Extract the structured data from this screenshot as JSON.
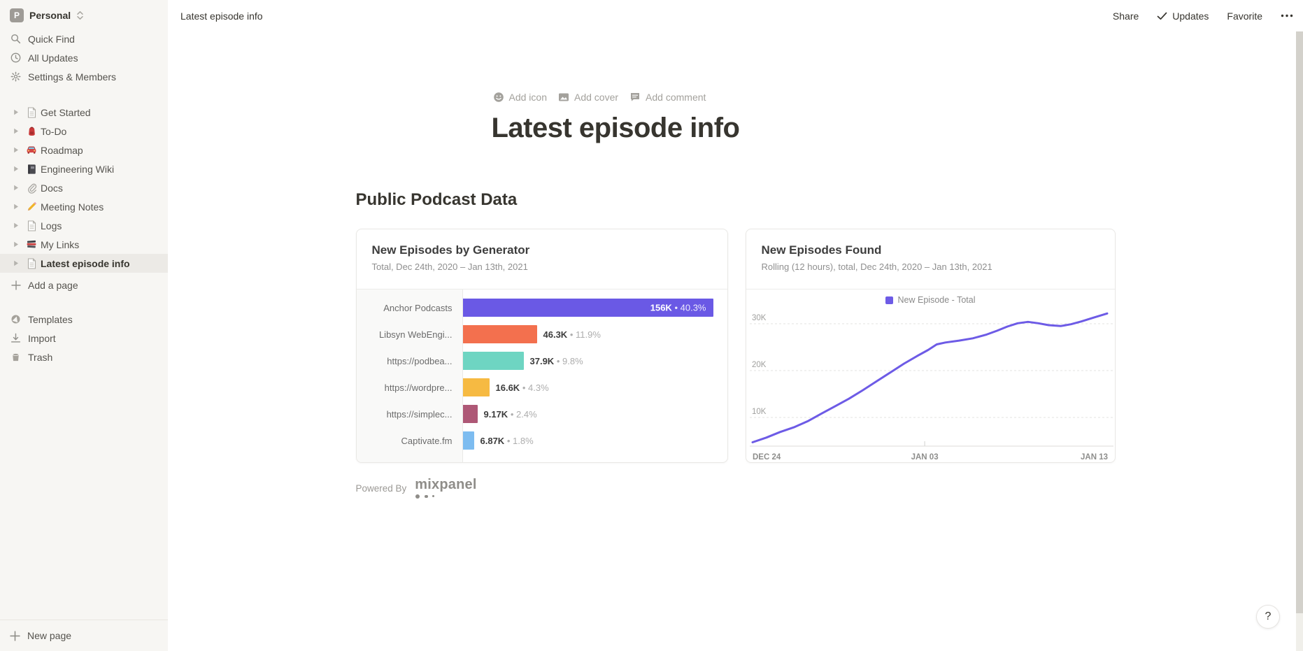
{
  "workspace": {
    "initial": "P",
    "name": "Personal"
  },
  "sidebar": {
    "nav": [
      {
        "label": "Quick Find",
        "icon": "search-icon"
      },
      {
        "label": "All Updates",
        "icon": "clock-icon"
      },
      {
        "label": "Settings & Members",
        "icon": "gear-icon"
      }
    ],
    "pages": [
      {
        "label": "Get Started",
        "icon": "page"
      },
      {
        "label": "To-Do",
        "icon": "backpack"
      },
      {
        "label": "Roadmap",
        "icon": "car"
      },
      {
        "label": "Engineering Wiki",
        "icon": "notebook"
      },
      {
        "label": "Docs",
        "icon": "paperclip"
      },
      {
        "label": "Meeting Notes",
        "icon": "pencil"
      },
      {
        "label": "Logs",
        "icon": "page"
      },
      {
        "label": "My Links",
        "icon": "books"
      },
      {
        "label": "Latest episode info",
        "icon": "page",
        "selected": true
      }
    ],
    "add_a_page": "Add a page",
    "footer": [
      {
        "label": "Templates",
        "icon": "templates-icon"
      },
      {
        "label": "Import",
        "icon": "import-icon"
      },
      {
        "label": "Trash",
        "icon": "trash-icon"
      }
    ],
    "new_page": "New page"
  },
  "topbar": {
    "breadcrumb": "Latest episode info",
    "share": "Share",
    "updates": "Updates",
    "favorite": "Favorite",
    "more": "•••"
  },
  "page": {
    "actions": [
      {
        "label": "Add icon",
        "icon": "emoji-icon"
      },
      {
        "label": "Add cover",
        "icon": "image-icon"
      },
      {
        "label": "Add comment",
        "icon": "comment-icon"
      }
    ],
    "title": "Latest episode info",
    "section_heading": "Public Podcast Data",
    "powered_by": "Powered By",
    "powered_by_brand": "mixpanel",
    "help_label": "?"
  },
  "chart_data": [
    {
      "type": "bar",
      "orientation": "horizontal",
      "title": "New Episodes by Generator",
      "subtitle": "Total, Dec 24th, 2020 – Jan 13th, 2021",
      "categories": [
        "Anchor Podcasts",
        "Libsyn WebEngi...",
        "https://podbea...",
        "https://wordpre...",
        "https://simplec...",
        "Captivate.fm"
      ],
      "values": [
        156000,
        46300,
        37900,
        16600,
        9170,
        6870
      ],
      "value_labels": [
        "156K",
        "46.3K",
        "37.9K",
        "16.6K",
        "9.17K",
        "6.87K"
      ],
      "pct_labels": [
        "40.3%",
        "11.9%",
        "9.8%",
        "4.3%",
        "2.4%",
        "1.8%"
      ],
      "bar_colors": [
        "#6A59E5",
        "#F3704E",
        "#6ED5C2",
        "#F6BA42",
        "#AE5876",
        "#7DBCF0"
      ],
      "label_inside_first": true,
      "max_value": 156000
    },
    {
      "type": "line",
      "title": "New Episodes Found",
      "subtitle": "Rolling (12 hours), total, Dec 24th, 2020 – Jan 13th, 2021",
      "legend": [
        "New Episode - Total"
      ],
      "line_color": "#6D5BE6",
      "grid": "dashed-horizontal",
      "y_ticks": [
        10,
        20,
        30
      ],
      "y_tick_labels": [
        "10K",
        "20K",
        "30K"
      ],
      "x_tick_pos": [
        0,
        10,
        20
      ],
      "x_tick_labels": [
        "DEC 24",
        "JAN 03",
        "JAN 13"
      ],
      "xlim": [
        0,
        20.6
      ],
      "ylim_bottom_value": 10,
      "x": [
        0,
        0.8,
        1.6,
        2.4,
        3.2,
        4,
        4.8,
        5.6,
        6.4,
        7.2,
        8,
        8.8,
        9.6,
        10.2,
        10.7,
        11.2,
        12,
        12.8,
        13.6,
        14.2,
        14.8,
        15.4,
        16,
        16.6,
        17.2,
        17.9,
        18.5,
        19.1,
        19.8,
        20.6
      ],
      "y": [
        4.7,
        5.7,
        6.9,
        7.9,
        9.2,
        10.8,
        12.4,
        14.0,
        15.8,
        17.7,
        19.6,
        21.5,
        23.2,
        24.4,
        25.6,
        26.0,
        26.4,
        26.9,
        27.7,
        28.5,
        29.4,
        30.1,
        30.4,
        30.1,
        29.7,
        29.5,
        29.9,
        30.5,
        31.3,
        32.2
      ]
    }
  ]
}
